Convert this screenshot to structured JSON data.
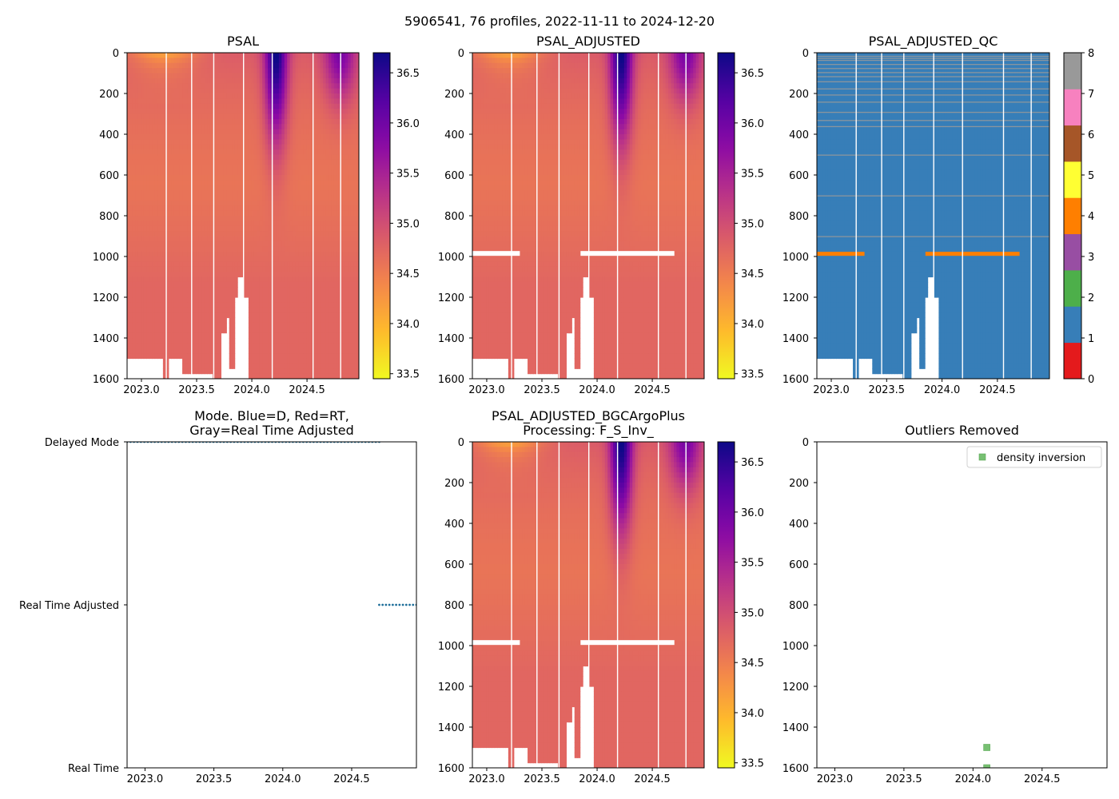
{
  "figure": {
    "suptitle": "5906541, 76 profiles, 2022-11-11 to 2024-12-20"
  },
  "colors": {
    "mode_dots": "#1f6f9a",
    "qc_background": "#377eb8",
    "qc_fill_value": "#999999",
    "qc_flag4": "#ff7f00",
    "outlier_marker": "#77c072"
  },
  "chart_data": [
    {
      "id": "psal",
      "type": "heatmap",
      "title": "PSAL",
      "xlim": [
        2022.87,
        2024.97
      ],
      "xticks": [
        2023.0,
        2023.5,
        2024.0,
        2024.5
      ],
      "xtick_labels": [
        "2023.0",
        "2023.5",
        "2024.0",
        "2024.5"
      ],
      "ylim": [
        1600,
        0
      ],
      "yticks": [
        0,
        200,
        400,
        600,
        800,
        1000,
        1200,
        1400,
        1600
      ],
      "ytick_labels": [
        "0",
        "200",
        "400",
        "600",
        "800",
        "1000",
        "1200",
        "1400",
        "1600"
      ],
      "colormap": "plasma_r",
      "color_range": [
        33.45,
        36.7
      ],
      "colorbar_ticks": [
        33.5,
        34.0,
        34.5,
        35.0,
        35.5,
        36.0,
        36.5
      ],
      "colorbar_labels": [
        "33.5",
        "34.0",
        "34.5",
        "35.0",
        "35.5",
        "36.0",
        "36.5"
      ],
      "has_qc_gap": false
    },
    {
      "id": "psal_adj",
      "type": "heatmap",
      "title": "PSAL_ADJUSTED",
      "xlim": [
        2022.87,
        2024.97
      ],
      "xticks": [
        2023.0,
        2023.5,
        2024.0,
        2024.5
      ],
      "xtick_labels": [
        "2023.0",
        "2023.5",
        "2024.0",
        "2024.5"
      ],
      "ylim": [
        1600,
        0
      ],
      "yticks": [
        0,
        200,
        400,
        600,
        800,
        1000,
        1200,
        1400,
        1600
      ],
      "ytick_labels": [
        "0",
        "200",
        "400",
        "600",
        "800",
        "1000",
        "1200",
        "1400",
        "1600"
      ],
      "colormap": "plasma_r",
      "color_range": [
        33.45,
        36.7
      ],
      "colorbar_ticks": [
        33.5,
        34.0,
        34.5,
        35.0,
        35.5,
        36.0,
        36.5
      ],
      "colorbar_labels": [
        "33.5",
        "34.0",
        "34.5",
        "35.0",
        "35.5",
        "36.0",
        "36.5"
      ],
      "has_qc_gap": true
    },
    {
      "id": "psal_adj_qc",
      "type": "heatmap",
      "title": "PSAL_ADJUSTED_QC",
      "xlim": [
        2022.87,
        2024.97
      ],
      "xticks": [
        2023.0,
        2023.5,
        2024.0,
        2024.5
      ],
      "xtick_labels": [
        "2023.0",
        "2023.5",
        "2024.0",
        "2024.5"
      ],
      "ylim": [
        1600,
        0
      ],
      "yticks": [
        0,
        200,
        400,
        600,
        800,
        1000,
        1200,
        1400,
        1600
      ],
      "ytick_labels": [
        "0",
        "200",
        "400",
        "600",
        "800",
        "1000",
        "1200",
        "1400",
        "1600"
      ],
      "qc_flags_present": [
        1,
        4,
        8
      ],
      "qc_flag4_depth": 990,
      "qc_fill_depths": [
        15,
        25,
        35,
        55,
        75,
        95,
        115,
        140,
        175,
        205,
        240,
        290,
        330,
        360,
        500,
        700,
        900
      ],
      "colorbar_ticks": [
        0,
        1,
        2,
        3,
        4,
        5,
        6,
        7,
        8
      ],
      "colorbar_labels": [
        "0",
        "1",
        "2",
        "3",
        "4",
        "5",
        "6",
        "7",
        "8"
      ],
      "qc_colors": [
        "#e41a1c",
        "#377eb8",
        "#4daf4a",
        "#984ea3",
        "#ff7f00",
        "#ffff33",
        "#a65628",
        "#f781bf",
        "#999999"
      ]
    },
    {
      "id": "mode",
      "type": "scatter",
      "title_lines": [
        "Mode. Blue=D, Red=RT,",
        "Gray=Real Time Adjusted"
      ],
      "xlim": [
        2022.87,
        2024.97
      ],
      "xticks": [
        2023.0,
        2023.5,
        2024.0,
        2024.5
      ],
      "xtick_labels": [
        "2023.0",
        "2023.5",
        "2024.0",
        "2024.5"
      ],
      "ylim": [
        0,
        2
      ],
      "ytick_values": [
        2,
        1,
        0
      ],
      "ytick_labels": [
        "Delayed Mode",
        "Real Time Adjusted",
        "Real Time"
      ],
      "series": [
        {
          "name": "Delayed Mode",
          "y": 2,
          "x_start": 2022.87,
          "x_end": 2024.7
        },
        {
          "name": "Real Time Adjusted",
          "y": 1,
          "x_start": 2024.7,
          "x_end": 2024.97
        }
      ]
    },
    {
      "id": "bgc",
      "type": "heatmap",
      "title_lines": [
        "PSAL_ADJUSTED_BGCArgoPlus",
        "Processing: F_S_Inv_"
      ],
      "xlim": [
        2022.87,
        2024.97
      ],
      "xticks": [
        2023.0,
        2023.5,
        2024.0,
        2024.5
      ],
      "xtick_labels": [
        "2023.0",
        "2023.5",
        "2024.0",
        "2024.5"
      ],
      "ylim": [
        1600,
        0
      ],
      "yticks": [
        0,
        200,
        400,
        600,
        800,
        1000,
        1200,
        1400,
        1600
      ],
      "ytick_labels": [
        "0",
        "200",
        "400",
        "600",
        "800",
        "1000",
        "1200",
        "1400",
        "1600"
      ],
      "colormap": "plasma_r",
      "color_range": [
        33.45,
        36.7
      ],
      "colorbar_ticks": [
        33.5,
        34.0,
        34.5,
        35.0,
        35.5,
        36.0,
        36.5
      ],
      "colorbar_labels": [
        "33.5",
        "34.0",
        "34.5",
        "35.0",
        "35.5",
        "36.0",
        "36.5"
      ],
      "has_qc_gap": true
    },
    {
      "id": "outliers",
      "type": "scatter",
      "title": "Outliers Removed",
      "xlim": [
        2022.87,
        2024.97
      ],
      "xticks": [
        2023.0,
        2023.5,
        2024.0,
        2024.5
      ],
      "xtick_labels": [
        "2023.0",
        "2023.5",
        "2024.0",
        "2024.5"
      ],
      "ylim": [
        1600,
        0
      ],
      "yticks": [
        0,
        200,
        400,
        600,
        800,
        1000,
        1200,
        1400,
        1600
      ],
      "ytick_labels": [
        "0",
        "200",
        "400",
        "600",
        "800",
        "1000",
        "1200",
        "1400",
        "1600"
      ],
      "legend": {
        "label": "density inversion",
        "placement": "top-right"
      },
      "points": [
        {
          "x": 2024.1,
          "y": 1500
        },
        {
          "x": 2024.1,
          "y": 1600
        }
      ]
    }
  ],
  "profile_gaps": [
    2023.22,
    2023.45,
    2023.65,
    2023.92,
    2024.18,
    2024.55,
    2024.8
  ],
  "bottom_depth_steps": [
    {
      "x0": 2022.87,
      "x1": 2023.2,
      "depth": 1500
    },
    {
      "x0": 2023.2,
      "x1": 2023.25,
      "depth": 1600
    },
    {
      "x0": 2023.25,
      "x1": 2023.38,
      "depth": 1500
    },
    {
      "x0": 2023.38,
      "x1": 2023.65,
      "depth": 1580
    },
    {
      "x0": 2023.65,
      "x1": 2023.72,
      "depth": 1600
    },
    {
      "x0": 2023.72,
      "x1": 2023.77,
      "depth": 1380
    },
    {
      "x0": 2023.77,
      "x1": 2023.8,
      "depth": 1310
    },
    {
      "x0": 2023.8,
      "x1": 2023.84,
      "depth": 1560
    },
    {
      "x0": 2023.84,
      "x1": 2023.88,
      "depth": 1200
    },
    {
      "x0": 2023.88,
      "x1": 2023.92,
      "depth": 1100
    },
    {
      "x0": 2023.92,
      "x1": 2023.96,
      "depth": 1200
    },
    {
      "x0": 2023.96,
      "x1": 2024.97,
      "depth": 1600
    }
  ],
  "qc_gap_segments": [
    {
      "x0": 2022.87,
      "x1": 2023.3,
      "depth": 985
    },
    {
      "x0": 2023.85,
      "x1": 2024.7,
      "depth": 985
    }
  ]
}
